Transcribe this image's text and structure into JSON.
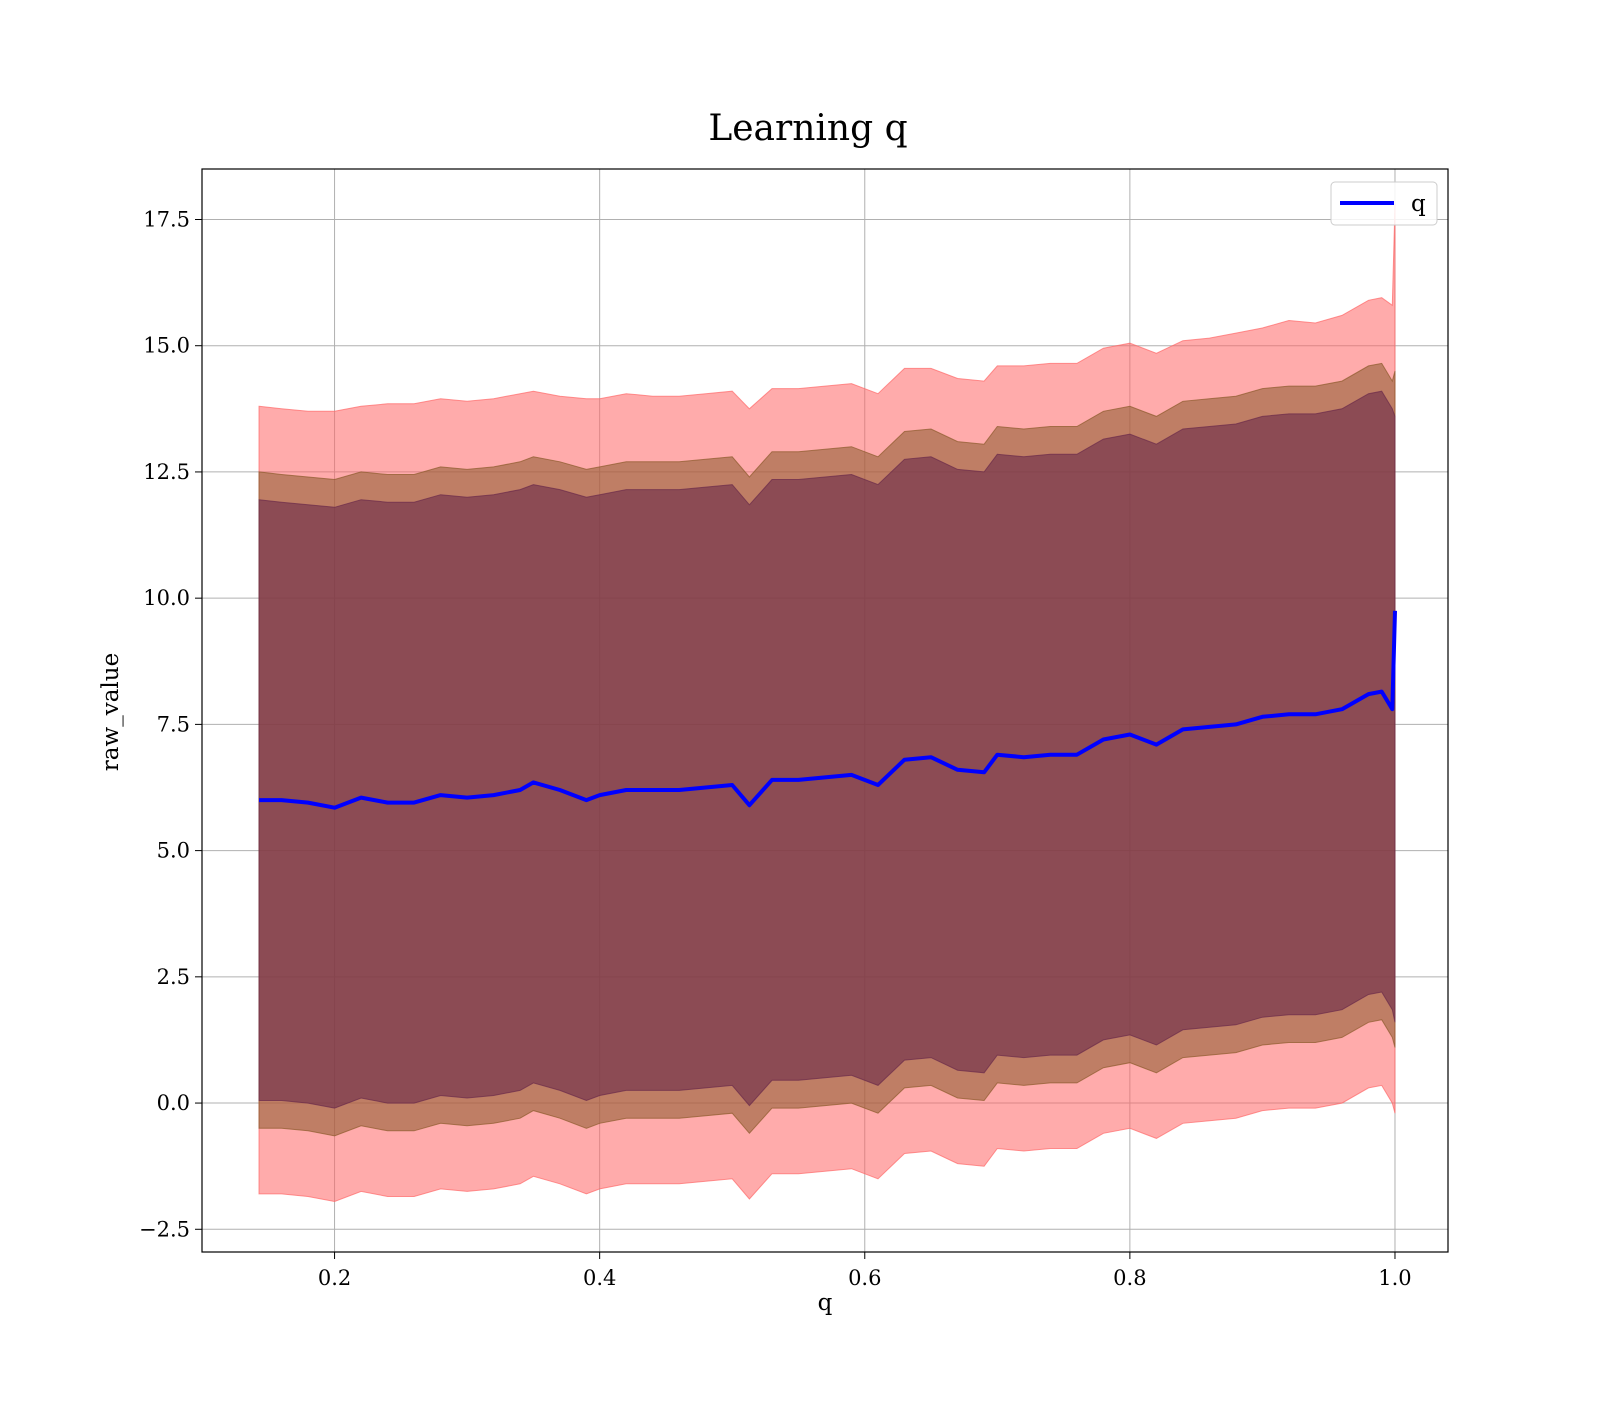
{
  "chart_data": {
    "type": "line",
    "title": "Learning q",
    "xlabel": "q",
    "ylabel": "raw_value",
    "xlim": [
      0.1,
      1.04
    ],
    "ylim": [
      -2.95,
      18.5
    ],
    "x_ticks": [
      0.2,
      0.4,
      0.6,
      0.8,
      1.0
    ],
    "x_tick_labels": [
      "0.2",
      "0.4",
      "0.6",
      "0.8",
      "1.0"
    ],
    "y_ticks": [
      -2.5,
      0.0,
      2.5,
      5.0,
      7.5,
      10.0,
      12.5,
      15.0,
      17.5
    ],
    "y_tick_labels": [
      "−2.5",
      "0.0",
      "2.5",
      "5.0",
      "7.5",
      "10.0",
      "12.5",
      "15.0",
      "17.5"
    ],
    "grid": true,
    "legend": {
      "position": "top-right",
      "entries": [
        {
          "label": "q",
          "color": "#0000ff"
        }
      ]
    },
    "series": [
      {
        "name": "q",
        "color": "#0000ff",
        "x": [
          0.143,
          0.16,
          0.18,
          0.2,
          0.22,
          0.24,
          0.26,
          0.28,
          0.3,
          0.32,
          0.34,
          0.35,
          0.37,
          0.39,
          0.4,
          0.42,
          0.44,
          0.46,
          0.48,
          0.5,
          0.513,
          0.53,
          0.55,
          0.57,
          0.59,
          0.61,
          0.63,
          0.65,
          0.67,
          0.69,
          0.7,
          0.72,
          0.74,
          0.76,
          0.78,
          0.8,
          0.82,
          0.84,
          0.86,
          0.88,
          0.9,
          0.92,
          0.94,
          0.96,
          0.98,
          0.99,
          0.998,
          1.0
        ],
        "y": [
          6.0,
          6.0,
          5.95,
          5.85,
          6.05,
          5.95,
          5.95,
          6.1,
          6.05,
          6.1,
          6.2,
          6.35,
          6.2,
          6.0,
          6.1,
          6.2,
          6.2,
          6.2,
          6.25,
          6.3,
          5.9,
          6.4,
          6.4,
          6.45,
          6.5,
          6.3,
          6.8,
          6.85,
          6.6,
          6.55,
          6.9,
          6.85,
          6.9,
          6.9,
          7.2,
          7.3,
          7.1,
          7.4,
          7.45,
          7.5,
          7.65,
          7.7,
          7.7,
          7.8,
          8.1,
          8.15,
          7.8,
          9.75
        ]
      }
    ],
    "bands": [
      {
        "color": "#ff6666",
        "opacity": 0.55,
        "upper": [
          13.8,
          13.75,
          13.7,
          13.7,
          13.8,
          13.85,
          13.85,
          13.95,
          13.9,
          13.95,
          14.05,
          14.1,
          14.0,
          13.95,
          13.95,
          14.05,
          14.0,
          14.0,
          14.05,
          14.1,
          13.75,
          14.15,
          14.15,
          14.2,
          14.25,
          14.05,
          14.55,
          14.55,
          14.35,
          14.3,
          14.6,
          14.6,
          14.65,
          14.65,
          14.95,
          15.05,
          14.85,
          15.1,
          15.15,
          15.25,
          15.35,
          15.5,
          15.45,
          15.6,
          15.9,
          15.95,
          15.8,
          17.8
        ],
        "lower": [
          -1.8,
          -1.8,
          -1.85,
          -1.95,
          -1.75,
          -1.85,
          -1.85,
          -1.7,
          -1.75,
          -1.7,
          -1.6,
          -1.45,
          -1.6,
          -1.8,
          -1.7,
          -1.6,
          -1.6,
          -1.6,
          -1.55,
          -1.5,
          -1.9,
          -1.4,
          -1.4,
          -1.35,
          -1.3,
          -1.5,
          -1.0,
          -0.95,
          -1.2,
          -1.25,
          -0.9,
          -0.95,
          -0.9,
          -0.9,
          -0.6,
          -0.5,
          -0.7,
          -0.4,
          -0.35,
          -0.3,
          -0.15,
          -0.1,
          -0.1,
          0.0,
          0.3,
          0.35,
          0.0,
          -0.2
        ]
      },
      {
        "color": "#8b5a2b",
        "opacity": 0.55,
        "upper": [
          12.5,
          12.45,
          12.4,
          12.35,
          12.5,
          12.45,
          12.45,
          12.6,
          12.55,
          12.6,
          12.7,
          12.8,
          12.7,
          12.55,
          12.6,
          12.7,
          12.7,
          12.7,
          12.75,
          12.8,
          12.4,
          12.9,
          12.9,
          12.95,
          13.0,
          12.8,
          13.3,
          13.35,
          13.1,
          13.05,
          13.4,
          13.35,
          13.4,
          13.4,
          13.7,
          13.8,
          13.6,
          13.9,
          13.95,
          14.0,
          14.15,
          14.2,
          14.2,
          14.3,
          14.6,
          14.65,
          14.3,
          14.5
        ],
        "lower": [
          -0.5,
          -0.5,
          -0.55,
          -0.65,
          -0.45,
          -0.55,
          -0.55,
          -0.4,
          -0.45,
          -0.4,
          -0.3,
          -0.15,
          -0.3,
          -0.5,
          -0.4,
          -0.3,
          -0.3,
          -0.3,
          -0.25,
          -0.2,
          -0.6,
          -0.1,
          -0.1,
          -0.05,
          0.0,
          -0.2,
          0.3,
          0.35,
          0.1,
          0.05,
          0.4,
          0.35,
          0.4,
          0.4,
          0.7,
          0.8,
          0.6,
          0.9,
          0.95,
          1.0,
          1.15,
          1.2,
          1.2,
          1.3,
          1.6,
          1.65,
          1.3,
          1.1
        ]
      },
      {
        "color": "#6a2a4a",
        "opacity": 0.6,
        "upper": [
          11.95,
          11.9,
          11.85,
          11.8,
          11.95,
          11.9,
          11.9,
          12.05,
          12.0,
          12.05,
          12.15,
          12.25,
          12.15,
          12.0,
          12.05,
          12.15,
          12.15,
          12.15,
          12.2,
          12.25,
          11.85,
          12.35,
          12.35,
          12.4,
          12.45,
          12.25,
          12.75,
          12.8,
          12.55,
          12.5,
          12.85,
          12.8,
          12.85,
          12.85,
          13.15,
          13.25,
          13.05,
          13.35,
          13.4,
          13.45,
          13.6,
          13.65,
          13.65,
          13.75,
          14.05,
          14.1,
          13.75,
          13.6
        ],
        "lower": [
          0.05,
          0.05,
          0.0,
          -0.1,
          0.1,
          0.0,
          0.0,
          0.15,
          0.1,
          0.15,
          0.25,
          0.4,
          0.25,
          0.05,
          0.15,
          0.25,
          0.25,
          0.25,
          0.3,
          0.35,
          -0.05,
          0.45,
          0.45,
          0.5,
          0.55,
          0.35,
          0.85,
          0.9,
          0.65,
          0.6,
          0.95,
          0.9,
          0.95,
          0.95,
          1.25,
          1.35,
          1.15,
          1.45,
          1.5,
          1.55,
          1.7,
          1.75,
          1.75,
          1.85,
          2.15,
          2.2,
          1.85,
          1.6
        ]
      }
    ]
  }
}
